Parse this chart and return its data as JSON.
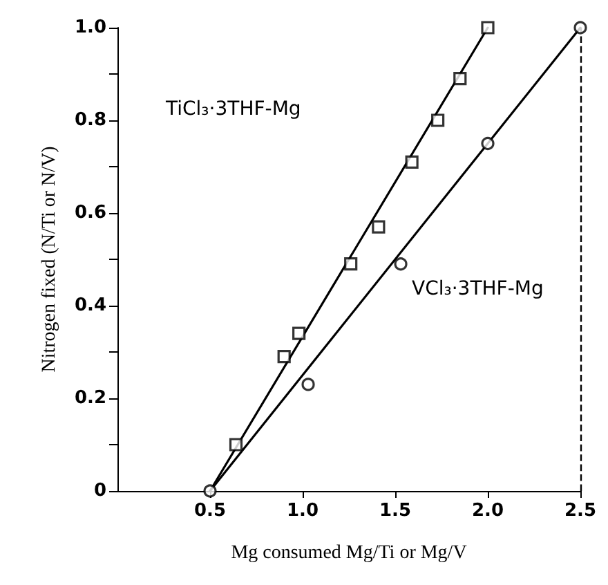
{
  "chart_data": {
    "type": "scatter",
    "xlabel": "Mg consumed Mg/Ti or Mg/V",
    "ylabel": "Nitrogen fixed (N/Ti or N/V)",
    "xlim": [
      0,
      2.5
    ],
    "ylim": [
      0,
      1
    ],
    "xticks": [
      0.5,
      {
        "value": 1,
        "label": "1.0"
      },
      1.5,
      {
        "value": 2,
        "label": "2.0"
      },
      2.5
    ],
    "yticks": [
      0,
      {
        "value": 0.1,
        "label": null
      },
      0.2,
      {
        "value": 0.3,
        "label": null
      },
      0.4,
      {
        "value": 0.5,
        "label": null
      },
      0.6,
      {
        "value": 0.7,
        "label": null
      },
      0.8,
      {
        "value": 0.9,
        "label": null
      },
      {
        "value": 1,
        "label": "1.0"
      }
    ],
    "grid": false,
    "series": [
      {
        "marker": "square",
        "color": "#000000",
        "x": [
          0.64,
          0.9,
          0.98,
          1.26,
          1.41,
          1.59,
          1.73,
          1.85,
          2.0
        ],
        "values": [
          0.1,
          0.29,
          0.34,
          0.49,
          0.57,
          0.71,
          0.8,
          0.89,
          1.0
        ]
      },
      {
        "marker": "circle",
        "color": "#000000",
        "x": [
          0.5,
          1.03,
          1.53,
          2.0,
          2.5
        ],
        "values": [
          0,
          0.23,
          0.49,
          0.75,
          1.0
        ]
      },
      {
        "type": "line",
        "marker": "none",
        "line_style": "solid",
        "color": "#000000",
        "x": [
          0.5,
          2.0
        ],
        "values": [
          0,
          1.0
        ]
      },
      {
        "type": "line",
        "marker": "none",
        "line_style": "solid",
        "color": "#000000",
        "x": [
          0.5,
          2.5
        ],
        "values": [
          0,
          1.0
        ]
      }
    ],
    "ref_lines": [
      {
        "axis": "x",
        "value": 2.5,
        "line_style": "dashed",
        "color": "#000000"
      }
    ],
    "annotations": [
      "TiCl₃·3THF-Mg",
      "VCl₃·3THF-Mg"
    ]
  }
}
